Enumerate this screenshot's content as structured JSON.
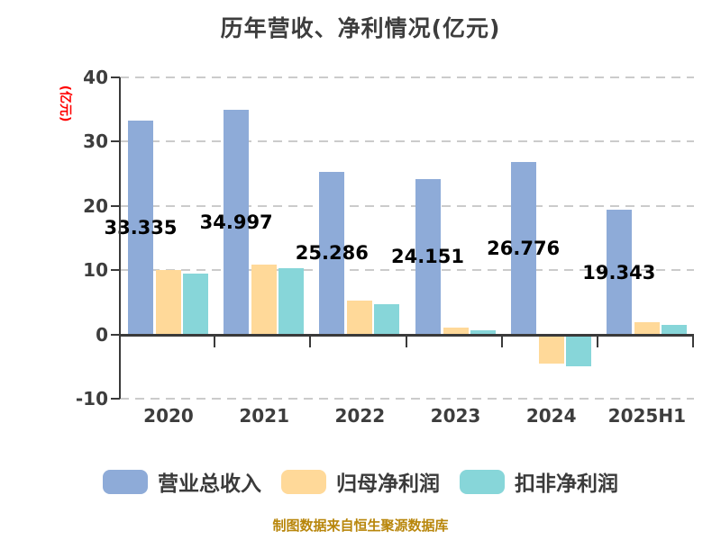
{
  "chart_data": {
    "type": "bar",
    "title": "历年营收、净利情况(亿元)",
    "ylabel": "(亿元)",
    "footer": "制图数据来自恒生聚源数据库",
    "categories": [
      "2020",
      "2021",
      "2022",
      "2023",
      "2024",
      "2025H1"
    ],
    "series": [
      {
        "name": "营业总收入",
        "color": "#8EABD8",
        "data_labels": true,
        "values": [
          33.335,
          34.997,
          25.286,
          24.151,
          26.776,
          19.343
        ]
      },
      {
        "name": "归母净利润",
        "color": "#FFD999",
        "data_labels": false,
        "values": [
          10.0,
          10.9,
          5.3,
          1.0,
          -4.6,
          1.9
        ]
      },
      {
        "name": "扣非净利润",
        "color": "#87D6D9",
        "data_labels": false,
        "values": [
          9.4,
          10.3,
          4.7,
          0.6,
          -5.0,
          1.5
        ]
      }
    ],
    "ylim": [
      -10,
      40
    ],
    "yticks": [
      -10,
      0,
      10,
      20,
      30,
      40
    ],
    "grid": "horizontal dashed",
    "legend_position": "bottom",
    "colors": {
      "background": "#FFFFFF",
      "axis": "#3A3A3A",
      "grid": "#CBCBCB",
      "title_text": "#3D3D3D",
      "ylabel_text": "#FF0000",
      "footer_text": "#B8860B",
      "value_label": "#000000"
    }
  }
}
